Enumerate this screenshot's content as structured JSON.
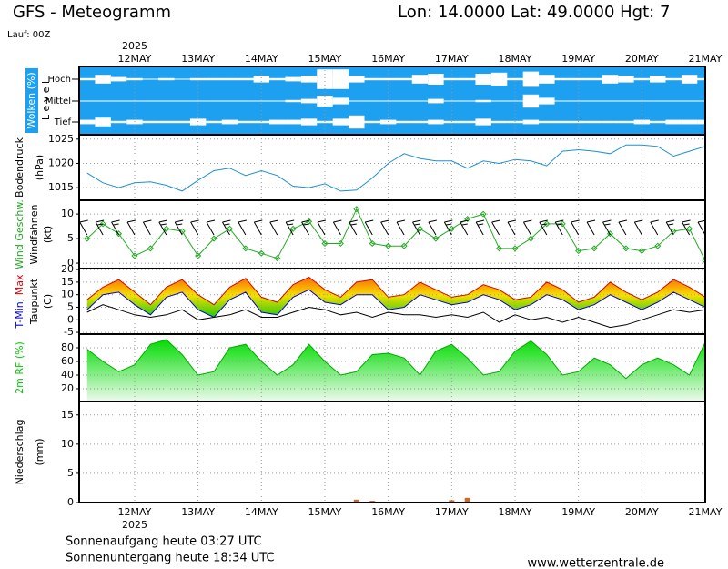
{
  "header": {
    "title": "GFS - Meteogramm",
    "location": "Lon: 14.0000 Lat: 49.0000 Hgt: 7",
    "run": "Lauf: 00Z"
  },
  "footer": {
    "sunrise": "Sonnenaufgang heute 03:27 UTC",
    "sunset": "Sonnenuntergang heute 18:34 UTC",
    "source": "www.wetterzentrale.de"
  },
  "chart_data": {
    "type": "meteogram",
    "year": "2025",
    "xlim": [
      -21,
      216
    ],
    "xticks": [
      {
        "value": 0,
        "label": "12MAY"
      },
      {
        "value": 24,
        "label": "13MAY"
      },
      {
        "value": 48,
        "label": "14MAY"
      },
      {
        "value": 72,
        "label": "15MAY"
      },
      {
        "value": 96,
        "label": "16MAY"
      },
      {
        "value": 120,
        "label": "17MAY"
      },
      {
        "value": 144,
        "label": "18MAY"
      },
      {
        "value": 168,
        "label": "19MAY"
      },
      {
        "value": 192,
        "label": "20MAY"
      },
      {
        "value": 216,
        "label": "21MAY"
      }
    ],
    "x": [
      -18,
      -12,
      -6,
      0,
      6,
      12,
      18,
      24,
      30,
      36,
      42,
      48,
      54,
      60,
      66,
      72,
      78,
      84,
      90,
      96,
      102,
      108,
      114,
      120,
      126,
      132,
      138,
      144,
      150,
      156,
      162,
      168,
      174,
      180,
      186,
      192,
      198,
      204,
      210,
      216
    ],
    "panels": [
      {
        "type": "cloud",
        "labels": [
          "Wolken (%)",
          "L e v e l"
        ],
        "background": "#1ea0f0",
        "series": [
          {
            "name": "Hoch",
            "color": "#ffffff",
            "values": [
              10,
              40,
              20,
              10,
              0,
              10,
              0,
              10,
              10,
              10,
              10,
              30,
              10,
              20,
              30,
              90,
              90,
              30,
              10,
              10,
              10,
              40,
              50,
              10,
              10,
              50,
              60,
              10,
              70,
              40,
              10,
              10,
              10,
              40,
              30,
              10,
              30,
              10,
              40,
              10
            ]
          },
          {
            "name": "Mittel",
            "color": "#ffffff",
            "values": [
              0,
              0,
              0,
              0,
              0,
              0,
              0,
              0,
              0,
              0,
              0,
              0,
              0,
              10,
              20,
              50,
              30,
              0,
              0,
              0,
              0,
              0,
              20,
              0,
              0,
              10,
              0,
              0,
              60,
              30,
              0,
              0,
              0,
              0,
              0,
              0,
              0,
              0,
              0,
              0
            ]
          },
          {
            "name": "Tief",
            "color": "#ffffff",
            "values": [
              20,
              40,
              10,
              20,
              10,
              10,
              10,
              30,
              10,
              20,
              10,
              10,
              20,
              20,
              30,
              10,
              30,
              60,
              10,
              20,
              10,
              10,
              20,
              10,
              10,
              30,
              10,
              10,
              20,
              10,
              10,
              10,
              10,
              10,
              10,
              20,
              10,
              20,
              20,
              20
            ]
          }
        ]
      },
      {
        "type": "line",
        "labels": [
          "Bodendruck",
          "(hPa)"
        ],
        "ylim": [
          1012.4,
          1025.9
        ],
        "yticks": [
          1015,
          1020,
          1025
        ],
        "series": [
          {
            "color": "#1e90d0",
            "values": [
              1018,
              1016,
              1015,
              1016,
              1016.2,
              1015.5,
              1014.3,
              1016.5,
              1018.5,
              1019,
              1017.5,
              1018.5,
              1017.5,
              1015.3,
              1015,
              1015.8,
              1014.3,
              1014.5,
              1017,
              1020,
              1022,
              1021,
              1020.5,
              1020.5,
              1019,
              1020.5,
              1020,
              1020.8,
              1020.5,
              1019.5,
              1022.5,
              1022.8,
              1022.5,
              1022,
              1023.8,
              1023.8,
              1023.5,
              1021.5,
              1022.5,
              1023.5
            ]
          }
        ]
      },
      {
        "type": "wind",
        "labels": [
          "Windfahnen",
          "(kt)"
        ],
        "ylim": [
          -1.1,
          12.8
        ],
        "yticks": [
          0,
          5,
          10
        ],
        "series": [
          {
            "name": "Wind Geschw.",
            "color": "#22aa22",
            "values": [
              5,
              8,
              6,
              1.5,
              3,
              7,
              6.5,
              1.5,
              5,
              7,
              3,
              2,
              1,
              7,
              8.5,
              4,
              4,
              11,
              4,
              3.5,
              3.5,
              7,
              5,
              7,
              9,
              10,
              3,
              3,
              5,
              8,
              8,
              2.5,
              3,
              6,
              3,
              2.5,
              3.5,
              6.5,
              7,
              0.5
            ]
          }
        ]
      },
      {
        "type": "band",
        "labels": [
          "Taupunkt",
          "(C)"
        ],
        "separator": ", ",
        "ylim": [
          -5.7,
          20.4
        ],
        "yticks": [
          -5,
          0,
          5,
          10,
          15,
          20
        ],
        "series": [
          {
            "name": "T-Min",
            "color": "#0000dd",
            "values": [
              4,
              10,
              11,
              6,
              2,
              9,
              11,
              4,
              1,
              8,
              11,
              3,
              2,
              9,
              12,
              7,
              6,
              10,
              10,
              4,
              5,
              10,
              8,
              6,
              7,
              10,
              8,
              4,
              6,
              10,
              8,
              4,
              6,
              10,
              7,
              4,
              7,
              11,
              8,
              5
            ]
          },
          {
            "name": "Max",
            "color": "#dd0000",
            "values": [
              8,
              13,
              16,
              11,
              6,
              13,
              16,
              10,
              6,
              13,
              16.5,
              9,
              7,
              14,
              17,
              12,
              9,
              15,
              16,
              9,
              10,
              15,
              12,
              9,
              10,
              14,
              12,
              8,
              9,
              15,
              12,
              7,
              9,
              15,
              11,
              8,
              11,
              16,
              13,
              9
            ]
          },
          {
            "name": "Taupunkt",
            "color": "#000000",
            "values": [
              3,
              6,
              4,
              2,
              1,
              2,
              4,
              0,
              1,
              2,
              4,
              1,
              1,
              3,
              5,
              4,
              2,
              3,
              1,
              3,
              2,
              2,
              1,
              2,
              1,
              3,
              -1,
              2,
              0,
              1,
              -1,
              1,
              -1,
              -3,
              -2,
              0,
              2,
              4,
              3,
              4
            ]
          }
        ]
      },
      {
        "type": "area",
        "labels": [],
        "ylim": [
          1.3,
          100
        ],
        "yticks": [
          20,
          40,
          60,
          80
        ],
        "series": [
          {
            "name": "2m RF (%)",
            "color": "#00cc00",
            "values": [
              78,
              60,
              45,
              55,
              85,
              92,
              70,
              40,
              45,
              80,
              85,
              60,
              40,
              55,
              85,
              60,
              40,
              45,
              70,
              72,
              65,
              40,
              75,
              85,
              65,
              40,
              45,
              75,
              90,
              70,
              40,
              45,
              65,
              55,
              35,
              55,
              65,
              55,
              40,
              88
            ]
          }
        ]
      },
      {
        "type": "bar",
        "labels": [
          "Niederschlag",
          "(mm)"
        ],
        "ylim": [
          0,
          17.3
        ],
        "yticks": [
          0,
          5,
          10,
          15
        ],
        "series": [
          {
            "color": "#d2691e",
            "values": [
              0,
              0,
              0,
              0,
              0,
              0,
              0,
              0,
              0,
              0,
              0,
              0,
              0,
              0,
              0,
              0,
              0,
              0.5,
              0.3,
              0,
              0,
              0,
              0,
              0.4,
              0.8,
              0,
              0,
              0,
              0,
              0,
              0,
              0,
              0,
              0,
              0,
              0,
              0,
              0,
              0,
              0
            ]
          }
        ]
      }
    ]
  }
}
